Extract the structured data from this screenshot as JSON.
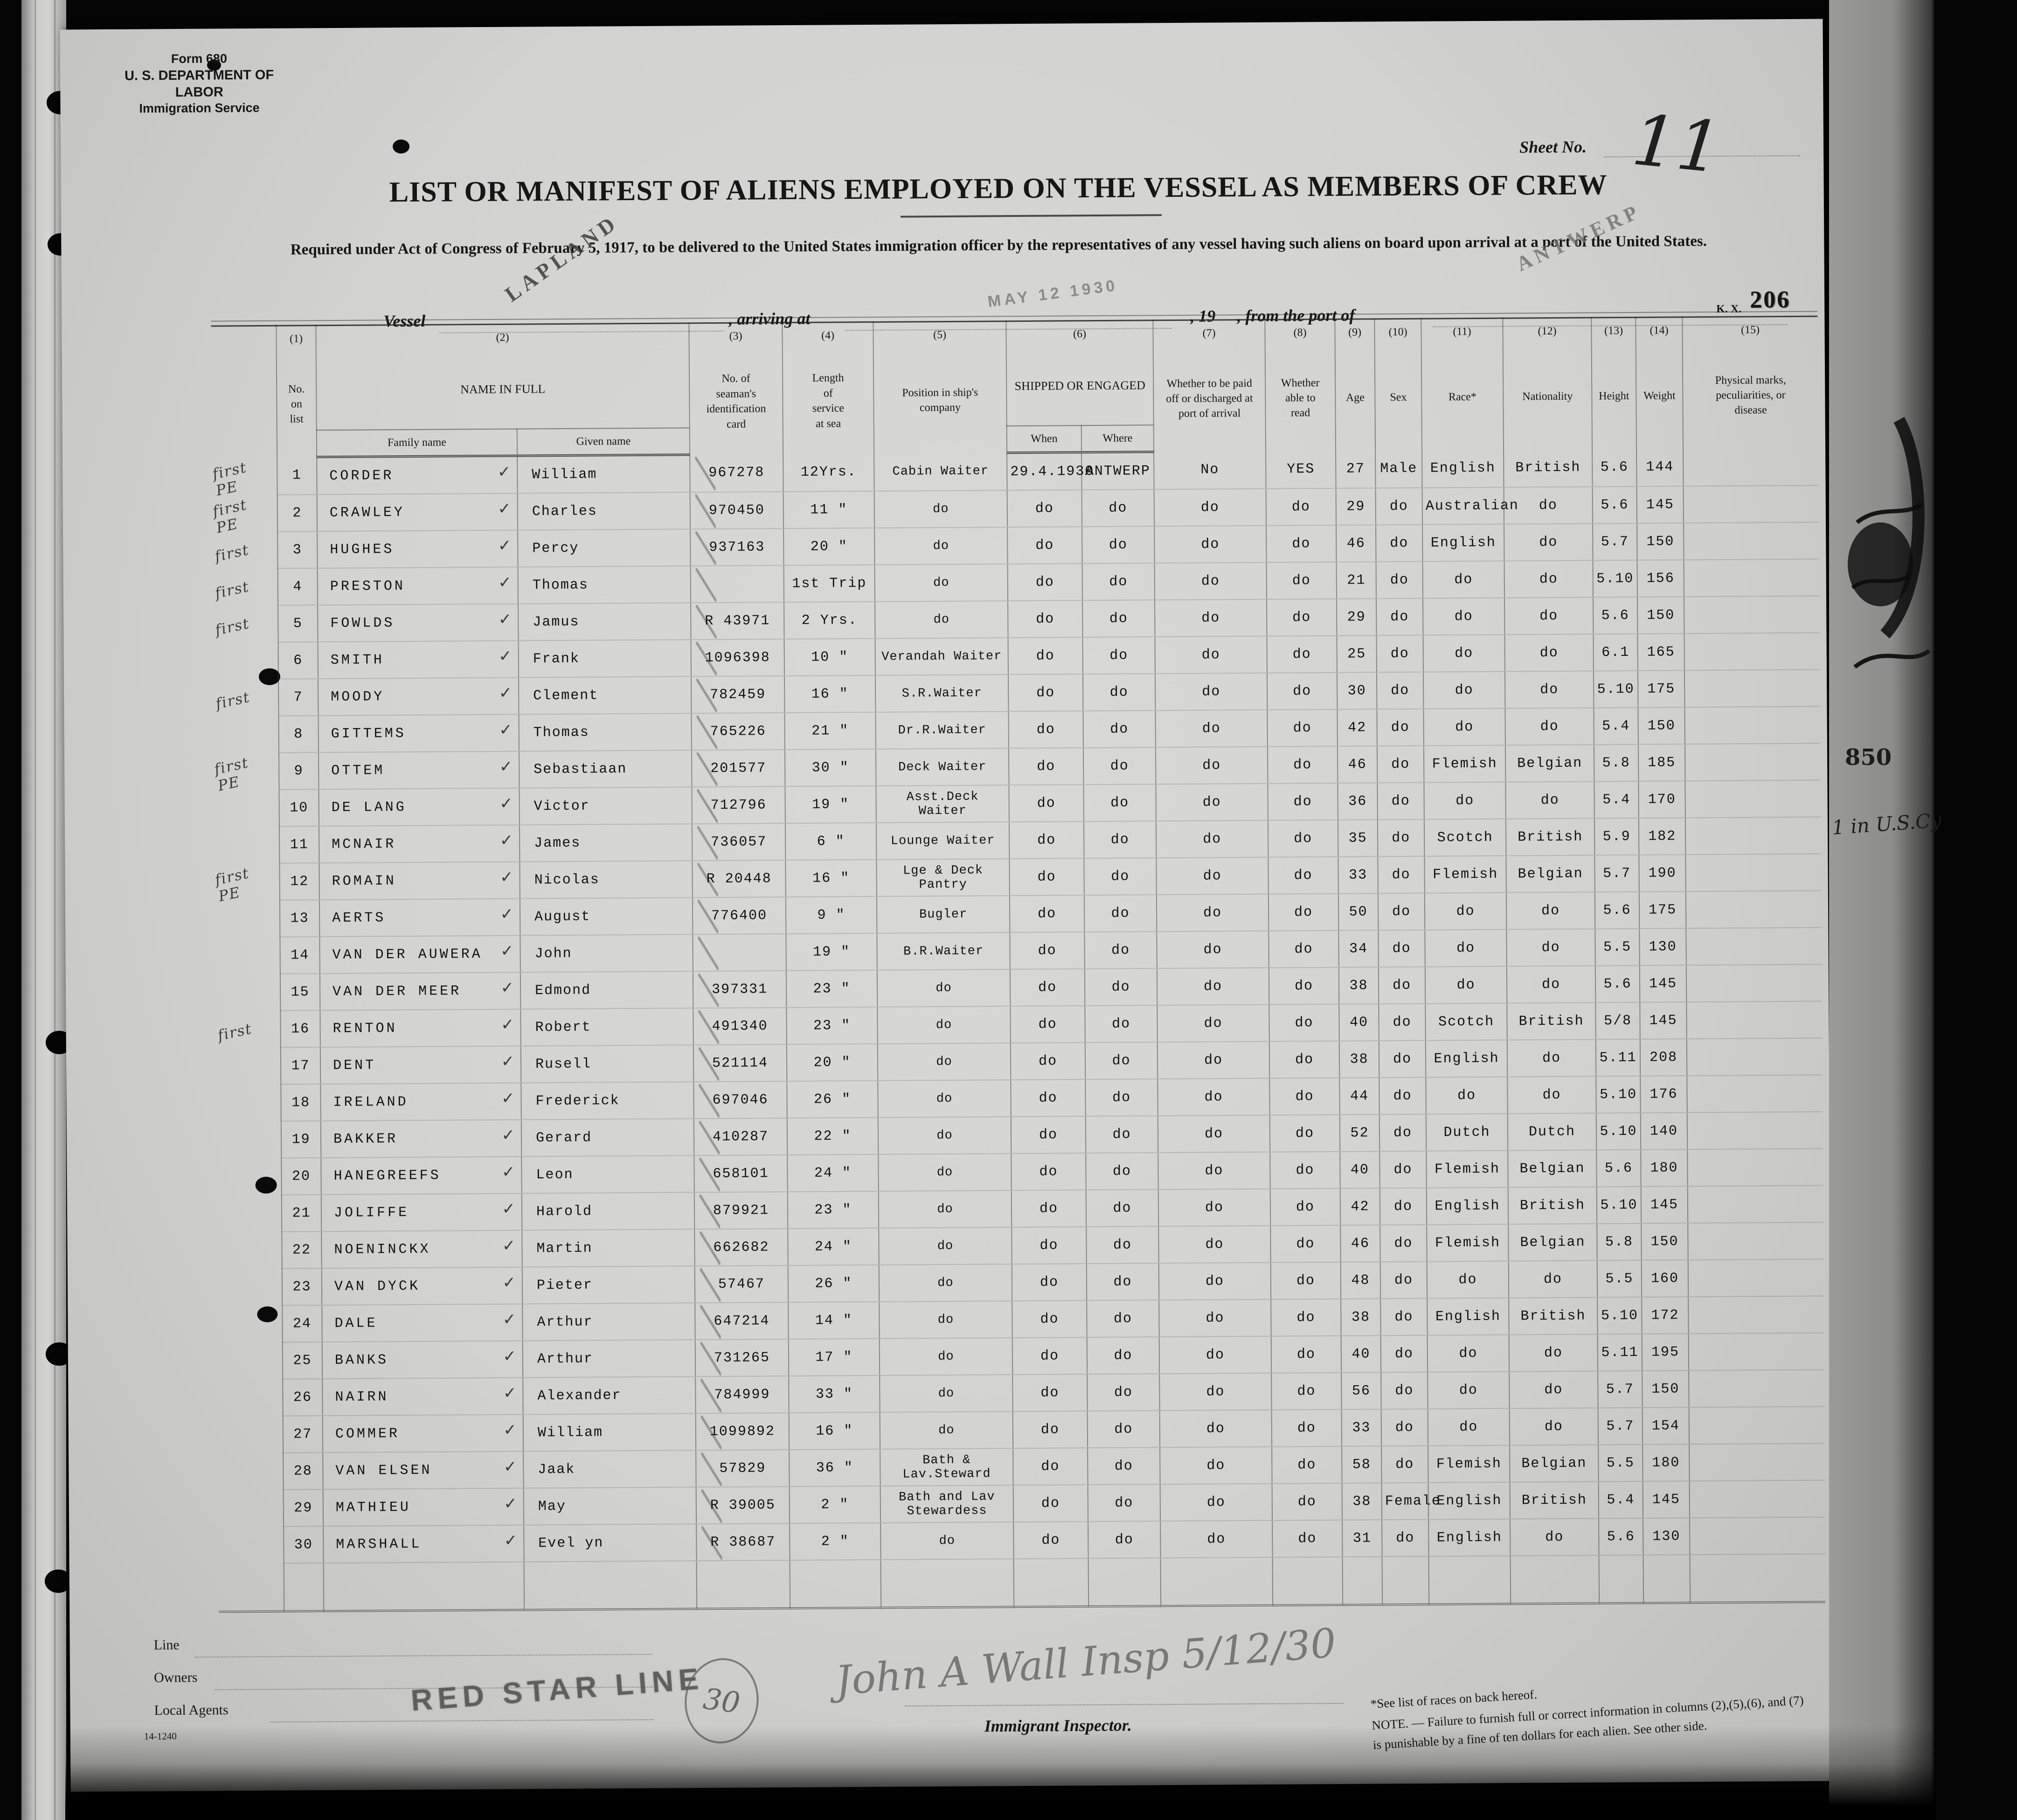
{
  "form": {
    "form_no": "Form 680",
    "department": "U. S. DEPARTMENT OF LABOR",
    "service": "Immigration Service",
    "sheet_label": "Sheet No.",
    "sheet_value": "11",
    "title": "LIST OR MANIFEST OF ALIENS EMPLOYED ON THE VESSEL AS MEMBERS OF CREW",
    "subtitle": "Required under Act of Congress of February 5, 1917, to be delivered to the United States immigration officer by the representatives of any vessel having such aliens on board upon arrival at a port of the United States.",
    "vessel_label": "Vessel",
    "vessel_stamp": "LAPLAND",
    "arriving_label": ", arriving at",
    "date_stamp": "MAY 12 1930",
    "year_label": ", 19",
    "port_label": ", from the port of",
    "port_stamp": "ANTWERP",
    "kx_label": "K. X.",
    "page_stamp": "206"
  },
  "table": {
    "col_numbers": {
      "c1": "(1)",
      "c2": "(2)",
      "c3": "(3)",
      "c4": "(4)",
      "c5": "(5)",
      "c6": "(6)",
      "c7": "(7)",
      "c8": "(8)",
      "c9": "(9)",
      "c10": "(10)",
      "c11": "(11)",
      "c12": "(12)",
      "c13": "(13)",
      "c14": "(14)",
      "c15": "(15)"
    },
    "headers": {
      "no": "No.\non\nlist",
      "name": "NAME IN FULL",
      "family": "Family name",
      "given": "Given name",
      "card": "No. of\nseaman's\nidentification\ncard",
      "service": "Length\nof\nservice\nat sea",
      "position": "Position in ship's\ncompany",
      "shipped": "SHIPPED OR ENGAGED",
      "when": "When",
      "where": "Where",
      "paid": "Whether to be paid\noff or discharged at\nport of arrival",
      "read": "Whether\nable to\nread",
      "age": "Age",
      "sex": "Sex",
      "race": "Race*",
      "nationality": "Nationality",
      "height": "Height",
      "weight": "Weight",
      "marks": "Physical marks,\npeculiarities, or\ndisease"
    },
    "rows": [
      {
        "m": "first PE",
        "no": "1",
        "family": "CORDER",
        "given": "William",
        "card": "967278",
        "service": "12Yrs.",
        "position": "Cabin Waiter",
        "when": "29.4.1930",
        "where": "ANTWERP",
        "paid": "No",
        "read": "YES",
        "age": "27",
        "sex": "Male",
        "race": "English",
        "nationality": "British",
        "height": "5.6",
        "weight": "144",
        "marks": ""
      },
      {
        "m": "first PE",
        "no": "2",
        "family": "CRAWLEY",
        "given": "Charles",
        "card": "970450",
        "service": "11 \"",
        "position": "do",
        "when": "do",
        "where": "do",
        "paid": "do",
        "read": "do",
        "age": "29",
        "sex": "do",
        "race": "Australian",
        "nationality": "do",
        "height": "5.6",
        "weight": "145",
        "marks": ""
      },
      {
        "m": "first",
        "no": "3",
        "family": "HUGHES",
        "given": "Percy",
        "card": "937163",
        "service": "20 \"",
        "position": "do",
        "when": "do",
        "where": "do",
        "paid": "do",
        "read": "do",
        "age": "46",
        "sex": "do",
        "race": "English",
        "nationality": "do",
        "height": "5.7",
        "weight": "150",
        "marks": ""
      },
      {
        "m": "first",
        "no": "4",
        "family": "PRESTON",
        "given": "Thomas",
        "card": "",
        "service": "1st Trip",
        "position": "do",
        "when": "do",
        "where": "do",
        "paid": "do",
        "read": "do",
        "age": "21",
        "sex": "do",
        "race": "do",
        "nationality": "do",
        "height": "5.10",
        "weight": "156",
        "marks": ""
      },
      {
        "m": "first",
        "no": "5",
        "family": "FOWLDS",
        "given": "Jamus",
        "card": "R 43971",
        "service": "2 Yrs.",
        "position": "do",
        "when": "do",
        "where": "do",
        "paid": "do",
        "read": "do",
        "age": "29",
        "sex": "do",
        "race": "do",
        "nationality": "do",
        "height": "5.6",
        "weight": "150",
        "marks": ""
      },
      {
        "m": "",
        "no": "6",
        "family": "SMITH",
        "given": "Frank",
        "card": "1096398",
        "service": "10 \"",
        "position": "Verandah Waiter",
        "when": "do",
        "where": "do",
        "paid": "do",
        "read": "do",
        "age": "25",
        "sex": "do",
        "race": "do",
        "nationality": "do",
        "height": "6.1",
        "weight": "165",
        "marks": ""
      },
      {
        "m": "first",
        "no": "7",
        "family": "MOODY",
        "given": "Clement",
        "card": "782459",
        "service": "16 \"",
        "position": "S.R.Waiter",
        "when": "do",
        "where": "do",
        "paid": "do",
        "read": "do",
        "age": "30",
        "sex": "do",
        "race": "do",
        "nationality": "do",
        "height": "5.10",
        "weight": "175",
        "marks": ""
      },
      {
        "m": "",
        "no": "8",
        "family": "GITTEMS",
        "given": "Thomas",
        "card": "765226",
        "service": "21 \"",
        "position": "Dr.R.Waiter",
        "when": "do",
        "where": "do",
        "paid": "do",
        "read": "do",
        "age": "42",
        "sex": "do",
        "race": "do",
        "nationality": "do",
        "height": "5.4",
        "weight": "150",
        "marks": ""
      },
      {
        "m": "first PE",
        "no": "9",
        "family": "OTTEM",
        "given": "Sebastiaan",
        "card": "201577",
        "service": "30 \"",
        "position": "Deck Waiter",
        "when": "do",
        "where": "do",
        "paid": "do",
        "read": "do",
        "age": "46",
        "sex": "do",
        "race": "Flemish",
        "nationality": "Belgian",
        "height": "5.8",
        "weight": "185",
        "marks": ""
      },
      {
        "m": "",
        "no": "10",
        "family": "DE LANG",
        "given": "Victor",
        "card": "712796",
        "service": "19 \"",
        "position": "Asst.Deck Waiter",
        "when": "do",
        "where": "do",
        "paid": "do",
        "read": "do",
        "age": "36",
        "sex": "do",
        "race": "do",
        "nationality": "do",
        "height": "5.4",
        "weight": "170",
        "marks": ""
      },
      {
        "m": "",
        "no": "11",
        "family": "MCNAIR",
        "given": "James",
        "card": "736057",
        "service": "6 \"",
        "position": "Lounge Waiter",
        "when": "do",
        "where": "do",
        "paid": "do",
        "read": "do",
        "age": "35",
        "sex": "do",
        "race": "Scotch",
        "nationality": "British",
        "height": "5.9",
        "weight": "182",
        "marks": ""
      },
      {
        "m": "first PE",
        "no": "12",
        "family": "ROMAIN",
        "given": "Nicolas",
        "card": "R 20448",
        "service": "16 \"",
        "position": "Lge & Deck Pantry",
        "when": "do",
        "where": "do",
        "paid": "do",
        "read": "do",
        "age": "33",
        "sex": "do",
        "race": "Flemish",
        "nationality": "Belgian",
        "height": "5.7",
        "weight": "190",
        "marks": ""
      },
      {
        "m": "",
        "no": "13",
        "family": "AERTS",
        "given": "August",
        "card": "776400",
        "service": "9 \"",
        "position": "Bugler",
        "when": "do",
        "where": "do",
        "paid": "do",
        "read": "do",
        "age": "50",
        "sex": "do",
        "race": "do",
        "nationality": "do",
        "height": "5.6",
        "weight": "175",
        "marks": ""
      },
      {
        "m": "",
        "no": "14",
        "family": "VAN DER AUWERA",
        "given": "John",
        "card": "",
        "service": "19 \"",
        "position": "B.R.Waiter",
        "when": "do",
        "where": "do",
        "paid": "do",
        "read": "do",
        "age": "34",
        "sex": "do",
        "race": "do",
        "nationality": "do",
        "height": "5.5",
        "weight": "130",
        "marks": ""
      },
      {
        "m": "",
        "no": "15",
        "family": "VAN DER MEER",
        "given": "Edmond",
        "card": "397331",
        "service": "23 \"",
        "position": "do",
        "when": "do",
        "where": "do",
        "paid": "do",
        "read": "do",
        "age": "38",
        "sex": "do",
        "race": "do",
        "nationality": "do",
        "height": "5.6",
        "weight": "145",
        "marks": ""
      },
      {
        "m": "first",
        "no": "16",
        "family": "RENTON",
        "given": "Robert",
        "card": "491340",
        "service": "23 \"",
        "position": "do",
        "when": "do",
        "where": "do",
        "paid": "do",
        "read": "do",
        "age": "40",
        "sex": "do",
        "race": "Scotch",
        "nationality": "British",
        "height": "5/8",
        "weight": "145",
        "marks": ""
      },
      {
        "m": "",
        "no": "17",
        "family": "DENT",
        "given": "Rusell",
        "card": "521114",
        "service": "20 \"",
        "position": "do",
        "when": "do",
        "where": "do",
        "paid": "do",
        "read": "do",
        "age": "38",
        "sex": "do",
        "race": "English",
        "nationality": "do",
        "height": "5.11",
        "weight": "208",
        "marks": ""
      },
      {
        "m": "",
        "no": "18",
        "family": "IRELAND",
        "given": "Frederick",
        "card": "697046",
        "service": "26 \"",
        "position": "do",
        "when": "do",
        "where": "do",
        "paid": "do",
        "read": "do",
        "age": "44",
        "sex": "do",
        "race": "do",
        "nationality": "do",
        "height": "5.10",
        "weight": "176",
        "marks": ""
      },
      {
        "m": "",
        "no": "19",
        "family": "BAKKER",
        "given": "Gerard",
        "card": "410287",
        "service": "22 \"",
        "position": "do",
        "when": "do",
        "where": "do",
        "paid": "do",
        "read": "do",
        "age": "52",
        "sex": "do",
        "race": "Dutch",
        "nationality": "Dutch",
        "height": "5.10",
        "weight": "140",
        "marks": ""
      },
      {
        "m": "",
        "no": "20",
        "family": "HANEGREEFS",
        "given": "Leon",
        "card": "658101",
        "service": "24 \"",
        "position": "do",
        "when": "do",
        "where": "do",
        "paid": "do",
        "read": "do",
        "age": "40",
        "sex": "do",
        "race": "Flemish",
        "nationality": "Belgian",
        "height": "5.6",
        "weight": "180",
        "marks": ""
      },
      {
        "m": "",
        "no": "21",
        "family": "JOLIFFE",
        "given": "Harold",
        "card": "879921",
        "service": "23 \"",
        "position": "do",
        "when": "do",
        "where": "do",
        "paid": "do",
        "read": "do",
        "age": "42",
        "sex": "do",
        "race": "English",
        "nationality": "British",
        "height": "5.10",
        "weight": "145",
        "marks": ""
      },
      {
        "m": "",
        "no": "22",
        "family": "NOENINCKX",
        "given": "Martin",
        "card": "662682",
        "service": "24 \"",
        "position": "do",
        "when": "do",
        "where": "do",
        "paid": "do",
        "read": "do",
        "age": "46",
        "sex": "do",
        "race": "Flemish",
        "nationality": "Belgian",
        "height": "5.8",
        "weight": "150",
        "marks": ""
      },
      {
        "m": "",
        "no": "23",
        "family": "VAN DYCK",
        "given": "Pieter",
        "card": "57467",
        "service": "26 \"",
        "position": "do",
        "when": "do",
        "where": "do",
        "paid": "do",
        "read": "do",
        "age": "48",
        "sex": "do",
        "race": "do",
        "nationality": "do",
        "height": "5.5",
        "weight": "160",
        "marks": ""
      },
      {
        "m": "",
        "no": "24",
        "family": "DALE",
        "given": "Arthur",
        "card": "647214",
        "service": "14 \"",
        "position": "do",
        "when": "do",
        "where": "do",
        "paid": "do",
        "read": "do",
        "age": "38",
        "sex": "do",
        "race": "English",
        "nationality": "British",
        "height": "5.10",
        "weight": "172",
        "marks": ""
      },
      {
        "m": "",
        "no": "25",
        "family": "BANKS",
        "given": "Arthur",
        "card": "731265",
        "service": "17 \"",
        "position": "do",
        "when": "do",
        "where": "do",
        "paid": "do",
        "read": "do",
        "age": "40",
        "sex": "do",
        "race": "do",
        "nationality": "do",
        "height": "5.11",
        "weight": "195",
        "marks": ""
      },
      {
        "m": "",
        "no": "26",
        "family": "NAIRN",
        "given": "Alexander",
        "card": "784999",
        "service": "33 \"",
        "position": "do",
        "when": "do",
        "where": "do",
        "paid": "do",
        "read": "do",
        "age": "56",
        "sex": "do",
        "race": "do",
        "nationality": "do",
        "height": "5.7",
        "weight": "150",
        "marks": ""
      },
      {
        "m": "",
        "no": "27",
        "family": "COMMER",
        "given": "William",
        "card": "1099892",
        "service": "16 \"",
        "position": "do",
        "when": "do",
        "where": "do",
        "paid": "do",
        "read": "do",
        "age": "33",
        "sex": "do",
        "race": "do",
        "nationality": "do",
        "height": "5.7",
        "weight": "154",
        "marks": ""
      },
      {
        "m": "",
        "no": "28",
        "family": "VAN ELSEN",
        "given": "Jaak",
        "card": "57829",
        "service": "36 \"",
        "position": "Bath & Lav.Steward",
        "when": "do",
        "where": "do",
        "paid": "do",
        "read": "do",
        "age": "58",
        "sex": "do",
        "race": "Flemish",
        "nationality": "Belgian",
        "height": "5.5",
        "weight": "180",
        "marks": ""
      },
      {
        "m": "",
        "no": "29",
        "family": "MATHIEU",
        "given": "May",
        "card": "R 39005",
        "service": "2 \"",
        "position": "Bath and Lav\nStewardess",
        "when": "do",
        "where": "do",
        "paid": "do",
        "read": "do",
        "age": "38",
        "sex": "Female",
        "race": "English",
        "nationality": "British",
        "height": "5.4",
        "weight": "145",
        "marks": ""
      },
      {
        "m": "",
        "no": "30",
        "family": "MARSHALL",
        "given": "Evel yn",
        "card": "R 38687",
        "service": "2 \"",
        "position": "do",
        "when": "do",
        "where": "do",
        "paid": "do",
        "read": "do",
        "age": "31",
        "sex": "do",
        "race": "English",
        "nationality": "do",
        "height": "5.6",
        "weight": "130",
        "marks": ""
      }
    ]
  },
  "footer": {
    "line_label": "Line",
    "owners_label": "Owners",
    "agents_label": "Local Agents",
    "form_small": "14-1240",
    "agents_stamp": "RED STAR LINE",
    "count_circle": "30",
    "signature": "John A Wall Insp 5/12/30",
    "inspector_label": "Immigrant Inspector.",
    "note1": "*See list of races on back hereof.",
    "note2": "NOTE. — Failure to furnish full or correct information in columns (2),(5),(6), and (7)",
    "note3": "is punishable by a fine of ten dollars for each alien.      See other side."
  },
  "margins": {
    "right_edge_number": "850",
    "right_edge_note": "1 in U.S.Cy"
  }
}
